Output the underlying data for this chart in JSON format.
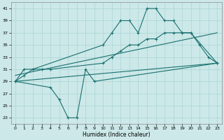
{
  "xlabel": "Humidex (Indice chaleur)",
  "bg_color": "#cce8e8",
  "line_color": "#1a7070",
  "grid_color": "#aad4d4",
  "xlim": [
    -0.5,
    23.5
  ],
  "ylim": [
    22,
    42
  ],
  "yticks": [
    23,
    25,
    27,
    29,
    31,
    33,
    35,
    37,
    39,
    41
  ],
  "xticks": [
    0,
    1,
    2,
    3,
    4,
    5,
    6,
    7,
    8,
    9,
    10,
    11,
    12,
    13,
    14,
    15,
    16,
    17,
    18,
    19,
    20,
    21,
    22,
    23
  ],
  "line_max": {
    "x": [
      0,
      1,
      2,
      10,
      11,
      12,
      13,
      14,
      15,
      16,
      17,
      18,
      19,
      20,
      21,
      22,
      23
    ],
    "y": [
      29,
      31,
      31,
      35,
      37,
      39,
      39,
      37,
      41,
      41,
      39,
      39,
      37,
      37,
      35,
      33,
      32
    ]
  },
  "line_mean": {
    "x": [
      0,
      1,
      2,
      3,
      4,
      10,
      11,
      12,
      13,
      14,
      15,
      16,
      17,
      18,
      19,
      20,
      23
    ],
    "y": [
      29,
      30,
      31,
      31,
      31,
      32,
      33,
      34,
      35,
      35,
      36,
      36,
      37,
      37,
      37,
      37,
      32
    ]
  },
  "line_min": {
    "x": [
      0,
      4,
      5,
      6,
      7,
      8,
      9,
      23
    ],
    "y": [
      29,
      28,
      26,
      23,
      23,
      31,
      29,
      32
    ]
  },
  "line_p25": {
    "x": [
      0,
      23
    ],
    "y": [
      29,
      32
    ]
  },
  "line_p75": {
    "x": [
      0,
      23
    ],
    "y": [
      30,
      37
    ]
  }
}
